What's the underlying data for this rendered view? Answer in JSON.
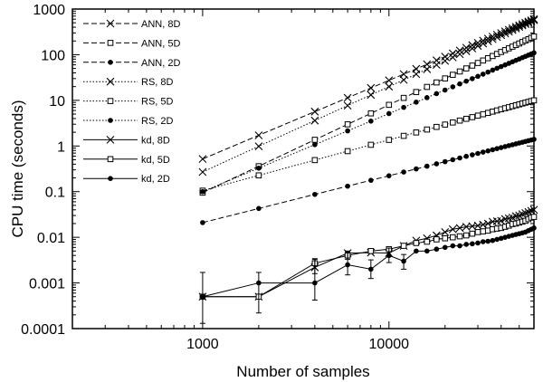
{
  "chart_data": {
    "type": "line",
    "title": "",
    "xlabel": "Number of samples",
    "ylabel": "CPU time (seconds)",
    "xscale": "log",
    "yscale": "log",
    "xlim": [
      200,
      60000
    ],
    "ylim": [
      0.0001,
      1000
    ],
    "grid": false,
    "legend_position": "top-left",
    "x_ticks": [
      {
        "value": 1000,
        "label": "1000"
      },
      {
        "value": 10000,
        "label": "10000"
      }
    ],
    "y_ticks": [
      {
        "value": 0.0001,
        "label": "0.0001"
      },
      {
        "value": 0.001,
        "label": "0.001"
      },
      {
        "value": 0.01,
        "label": "0.01"
      },
      {
        "value": 0.1,
        "label": "0.1"
      },
      {
        "value": 1,
        "label": "1"
      },
      {
        "value": 10,
        "label": "10"
      },
      {
        "value": 100,
        "label": "100"
      },
      {
        "value": 1000,
        "label": "1000"
      }
    ],
    "series": [
      {
        "name": "ANN, 8D",
        "line": "dashed",
        "marker": "x",
        "x": [
          1000,
          60000
        ],
        "y": [
          0.52,
          600
        ]
      },
      {
        "name": "ANN, 5D",
        "line": "dashed",
        "marker": "square",
        "x": [
          1000,
          60000
        ],
        "y": [
          0.095,
          250
        ]
      },
      {
        "name": "ANN, 2D",
        "line": "dashed",
        "marker": "dot",
        "x": [
          1000,
          60000
        ],
        "y": [
          0.021,
          1.4
        ]
      },
      {
        "name": "RS, 8D",
        "line": "dotted",
        "marker": "x",
        "x": [
          1000,
          60000
        ],
        "y": [
          0.27,
          570
        ]
      },
      {
        "name": "RS, 5D",
        "line": "dotted",
        "marker": "square",
        "x": [
          1000,
          60000
        ],
        "y": [
          0.105,
          10
        ]
      },
      {
        "name": "RS, 2D",
        "line": "dotted",
        "marker": "dot",
        "x": [
          1000,
          60000
        ],
        "y": [
          0.1,
          110
        ]
      },
      {
        "name": "kd, 8D",
        "line": "solid",
        "marker": "x",
        "x": [
          1000,
          2000,
          4000,
          6000,
          8000,
          10000,
          12000,
          14000,
          16000,
          18000,
          20000,
          22000,
          24000,
          26000,
          28000,
          30000,
          32000,
          34000,
          36000,
          38000,
          40000,
          42000,
          44000,
          46000,
          48000,
          50000,
          52000,
          54000,
          56000,
          58000,
          60000
        ],
        "y": [
          0.0005,
          0.0005,
          0.0022,
          0.0045,
          0.0046,
          0.0045,
          0.0065,
          0.0085,
          0.0095,
          0.011,
          0.013,
          0.015,
          0.016,
          0.017,
          0.0175,
          0.018,
          0.019,
          0.02,
          0.022,
          0.0225,
          0.023,
          0.025,
          0.026,
          0.027,
          0.029,
          0.03,
          0.032,
          0.034,
          0.036,
          0.038,
          0.04
        ]
      },
      {
        "name": "kd, 5D",
        "line": "solid",
        "marker": "square",
        "x": [
          1000,
          2000,
          4000,
          6000,
          8000,
          10000,
          12000,
          14000,
          16000,
          18000,
          20000,
          22000,
          24000,
          26000,
          28000,
          30000,
          32000,
          34000,
          36000,
          38000,
          40000,
          42000,
          44000,
          46000,
          48000,
          50000,
          52000,
          54000,
          56000,
          58000,
          60000
        ],
        "y": [
          0.0005,
          0.0005,
          0.0027,
          0.004,
          0.005,
          0.0055,
          0.0065,
          0.0075,
          0.008,
          0.009,
          0.0095,
          0.01,
          0.0105,
          0.011,
          0.012,
          0.013,
          0.0135,
          0.014,
          0.015,
          0.0155,
          0.016,
          0.017,
          0.018,
          0.0195,
          0.02,
          0.021,
          0.022,
          0.023,
          0.025,
          0.027,
          0.028
        ]
      },
      {
        "name": "kd, 2D",
        "line": "solid",
        "marker": "dot",
        "x": [
          1000,
          2000,
          4000,
          6000,
          8000,
          10000,
          12000,
          14000,
          16000,
          18000,
          20000,
          22000,
          24000,
          26000,
          28000,
          30000,
          32000,
          34000,
          36000,
          38000,
          40000,
          42000,
          44000,
          46000,
          48000,
          50000,
          52000,
          54000,
          56000,
          58000,
          60000
        ],
        "y": [
          0.0005,
          0.001,
          0.001,
          0.0025,
          0.002,
          0.004,
          0.003,
          0.005,
          0.005,
          0.0055,
          0.006,
          0.0065,
          0.0065,
          0.007,
          0.0072,
          0.0075,
          0.008,
          0.0082,
          0.0085,
          0.009,
          0.0095,
          0.01,
          0.0105,
          0.011,
          0.0115,
          0.012,
          0.0125,
          0.013,
          0.014,
          0.015,
          0.016
        ]
      }
    ],
    "error_bars": [
      {
        "series": "kd, 2D",
        "x": 1000,
        "low": 0.00013,
        "high": 0.0017
      },
      {
        "series": "kd, 2D",
        "x": 2000,
        "low": 0.00022,
        "high": 0.0017
      },
      {
        "series": "kd, 2D",
        "x": 4000,
        "low": 0.00042,
        "high": 0.0033
      },
      {
        "series": "kd, 2D",
        "x": 6000,
        "low": 0.0015,
        "high": 0.0047
      },
      {
        "series": "kd, 2D",
        "x": 8000,
        "low": 0.00125,
        "high": 0.0032
      },
      {
        "series": "kd, 2D",
        "x": 10000,
        "low": 0.0028,
        "high": 0.0058
      },
      {
        "series": "kd, 2D",
        "x": 12000,
        "low": 0.002,
        "high": 0.0042
      },
      {
        "series": "kd, 8D",
        "x": 4000,
        "low": 0.0016,
        "high": 0.0034
      },
      {
        "series": "kd, 5D",
        "x": 6000,
        "low": 0.0033,
        "high": 0.005
      }
    ]
  }
}
